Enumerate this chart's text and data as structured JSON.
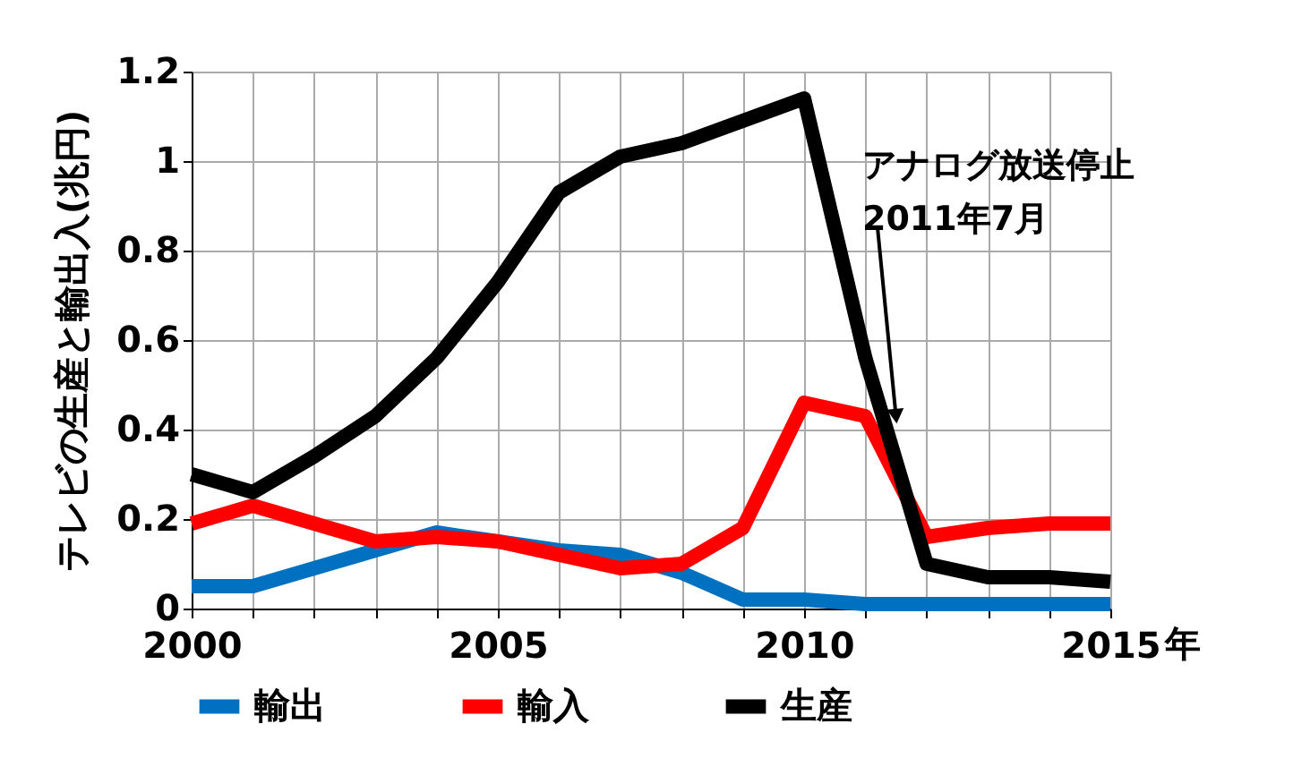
{
  "chart_data": {
    "type": "line",
    "ylabel": "テレビの生産と輸出入(兆円)",
    "xlabel": "年",
    "x": [
      2000,
      2001,
      2002,
      2003,
      2004,
      2005,
      2006,
      2007,
      2008,
      2009,
      2010,
      2011,
      2012,
      2013,
      2014,
      2015
    ],
    "series": [
      {
        "name": "輸出",
        "color": "#0070c0",
        "values": [
          0.05,
          0.05,
          0.09,
          0.13,
          0.17,
          0.15,
          0.13,
          0.12,
          0.08,
          0.02,
          0.02,
          0.01,
          0.01,
          0.01,
          0.01,
          0.01
        ]
      },
      {
        "name": "輸入",
        "color": "#ff0000",
        "values": [
          0.19,
          0.23,
          0.19,
          0.15,
          0.16,
          0.15,
          0.12,
          0.09,
          0.1,
          0.18,
          0.46,
          0.43,
          0.16,
          0.18,
          0.19,
          0.19
        ]
      },
      {
        "name": "生産",
        "color": "#000000",
        "values": [
          0.3,
          0.26,
          0.34,
          0.43,
          0.56,
          0.73,
          0.93,
          1.01,
          1.04,
          1.09,
          1.14,
          0.56,
          0.1,
          0.07,
          0.07,
          0.06
        ]
      }
    ],
    "xlim": [
      2000,
      2015
    ],
    "xticks": [
      2000,
      {
        "value": 2001,
        "label": null
      },
      {
        "value": 2002,
        "label": null
      },
      {
        "value": 2003,
        "label": null
      },
      {
        "value": 2004,
        "label": null
      },
      2005,
      {
        "value": 2006,
        "label": null
      },
      {
        "value": 2007,
        "label": null
      },
      {
        "value": 2008,
        "label": null
      },
      {
        "value": 2009,
        "label": null
      },
      2010,
      {
        "value": 2011,
        "label": null
      },
      {
        "value": 2012,
        "label": null
      },
      {
        "value": 2013,
        "label": null
      },
      {
        "value": 2014,
        "label": null
      },
      2015
    ],
    "ylim": [
      0,
      1.2
    ],
    "yticks": [
      0,
      0.2,
      0.4,
      0.6,
      0.8,
      1,
      1.2
    ],
    "grid": true,
    "legend": "bottom",
    "marker": "none",
    "line_style": "solid",
    "annotations": [
      {
        "text": "アナログ放送停止\n2011年7月",
        "x": 2011.5,
        "y": 0.43
      }
    ]
  }
}
